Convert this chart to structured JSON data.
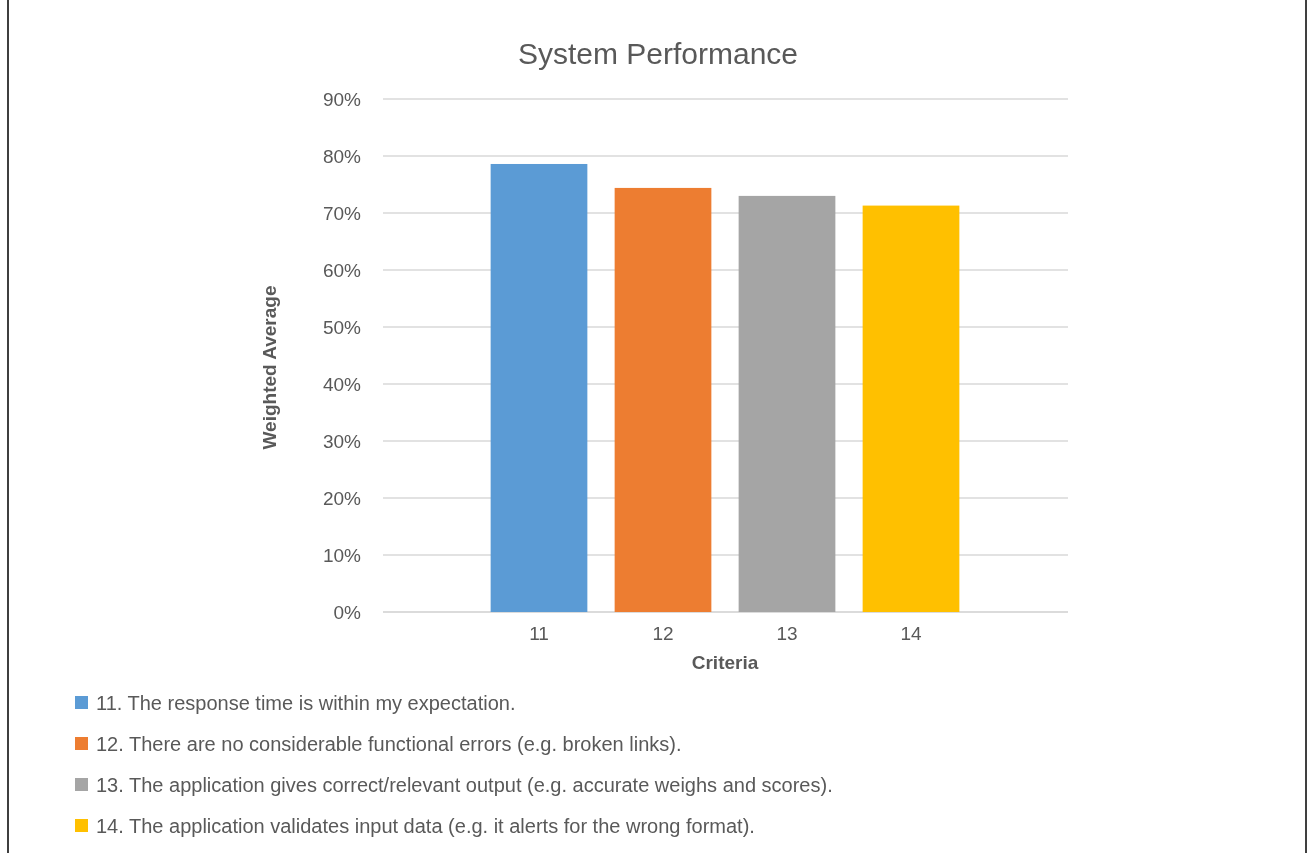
{
  "chart_data": {
    "type": "bar",
    "title": "System Performance",
    "xlabel": "Criteria",
    "ylabel": "Weighted Average",
    "categories": [
      "11",
      "12",
      "13",
      "14"
    ],
    "series": [
      {
        "name": "11. The response time is within my expectation.",
        "color": "#5b9bd5",
        "values": [
          78.6,
          null,
          null,
          null
        ]
      },
      {
        "name": "12. There are no considerable functional errors (e.g. broken links).",
        "color": "#ed7d31",
        "values": [
          null,
          74.4,
          null,
          null
        ]
      },
      {
        "name": "13. The application gives correct/relevant output (e.g. accurate weighs and scores).",
        "color": "#a5a5a5",
        "values": [
          null,
          null,
          73.0,
          null
        ]
      },
      {
        "name": "14. The application validates input data (e.g. it alerts for the wrong format).",
        "color": "#ffc000",
        "values": [
          null,
          null,
          null,
          71.3
        ]
      }
    ],
    "ylim": [
      0,
      90
    ],
    "yticks": [
      {
        "value": 0,
        "label": "0%"
      },
      {
        "value": 10,
        "label": "10%"
      },
      {
        "value": 20,
        "label": "20%"
      },
      {
        "value": 30,
        "label": "30%"
      },
      {
        "value": 40,
        "label": "40%"
      },
      {
        "value": 50,
        "label": "50%"
      },
      {
        "value": 60,
        "label": "60%"
      },
      {
        "value": 70,
        "label": "70%"
      },
      {
        "value": 80,
        "label": "80%"
      },
      {
        "value": 90,
        "label": "90%"
      }
    ],
    "grid": "y",
    "legend": "bottom"
  }
}
